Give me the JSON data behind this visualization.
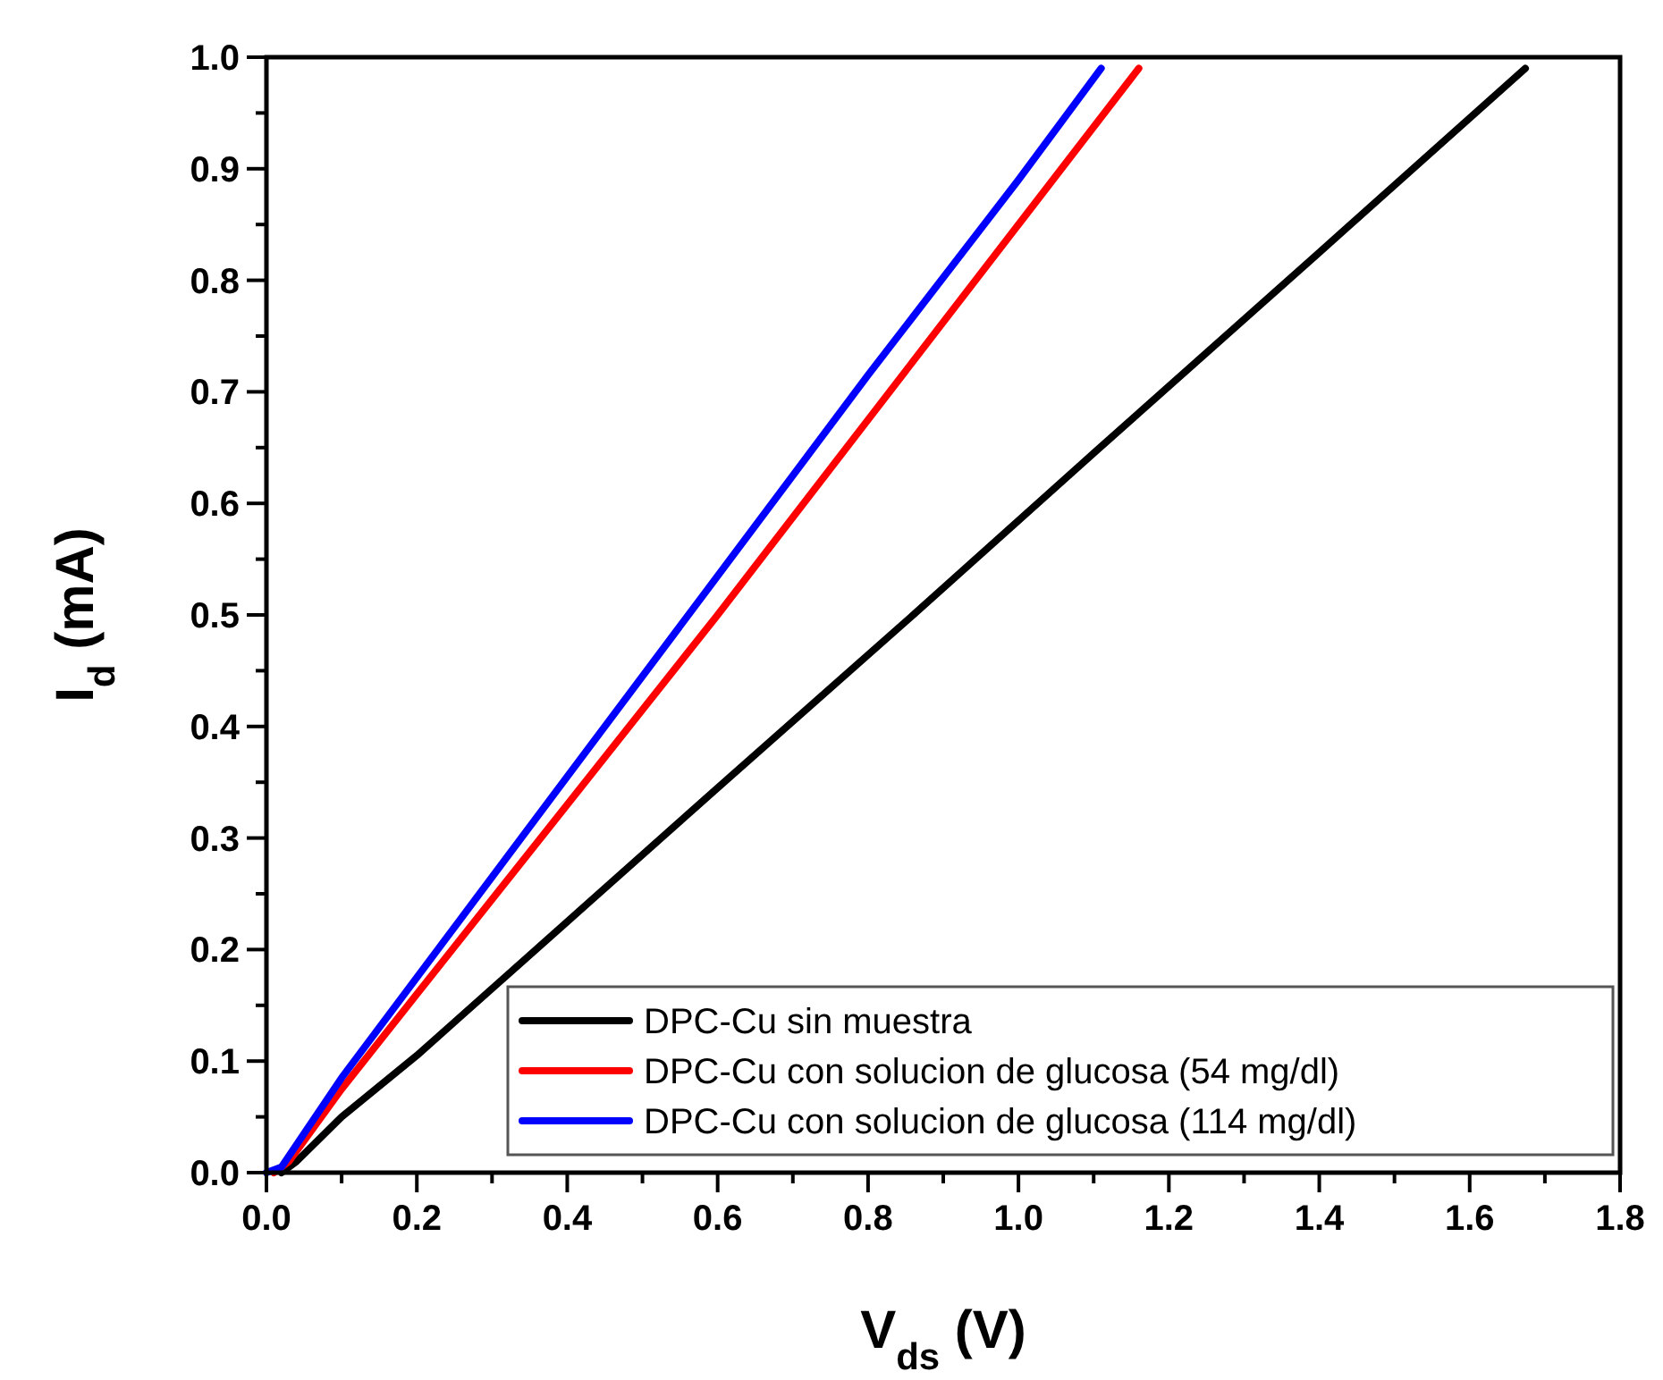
{
  "chart_data": {
    "type": "line",
    "xlabel": "V$_{ds}$ (V)",
    "ylabel": "I$_{d}$ (mA)",
    "xlim": [
      0,
      1.8
    ],
    "ylim": [
      0,
      1.0
    ],
    "xticks": [
      {
        "value": 0,
        "label": "0.0"
      },
      {
        "value": 0.1,
        "label": null
      },
      {
        "value": 0.2,
        "label": "0.2"
      },
      {
        "value": 0.3,
        "label": null
      },
      {
        "value": 0.4,
        "label": "0.4"
      },
      {
        "value": 0.5,
        "label": null
      },
      {
        "value": 0.6,
        "label": "0.6"
      },
      {
        "value": 0.7,
        "label": null
      },
      {
        "value": 0.8,
        "label": "0.8"
      },
      {
        "value": 0.9,
        "label": null
      },
      {
        "value": 1.0,
        "label": "1.0"
      },
      {
        "value": 1.1,
        "label": null
      },
      {
        "value": 1.2,
        "label": "1.2"
      },
      {
        "value": 1.3,
        "label": null
      },
      {
        "value": 1.4,
        "label": "1.4"
      },
      {
        "value": 1.5,
        "label": null
      },
      {
        "value": 1.6,
        "label": "1.6"
      },
      {
        "value": 1.7,
        "label": null
      },
      {
        "value": 1.8,
        "label": "1.8"
      }
    ],
    "yticks": [
      {
        "value": 0,
        "label": "0.0"
      },
      {
        "value": 0.05,
        "label": null
      },
      {
        "value": 0.1,
        "label": "0.1"
      },
      {
        "value": 0.15,
        "label": null
      },
      {
        "value": 0.2,
        "label": "0.2"
      },
      {
        "value": 0.25,
        "label": null
      },
      {
        "value": 0.3,
        "label": "0.3"
      },
      {
        "value": 0.35,
        "label": null
      },
      {
        "value": 0.4,
        "label": "0.4"
      },
      {
        "value": 0.45,
        "label": null
      },
      {
        "value": 0.5,
        "label": "0.5"
      },
      {
        "value": 0.55,
        "label": null
      },
      {
        "value": 0.6,
        "label": "0.6"
      },
      {
        "value": 0.65,
        "label": null
      },
      {
        "value": 0.7,
        "label": "0.7"
      },
      {
        "value": 0.75,
        "label": null
      },
      {
        "value": 0.8,
        "label": "0.8"
      },
      {
        "value": 0.85,
        "label": null
      },
      {
        "value": 0.9,
        "label": "0.9"
      },
      {
        "value": 0.95,
        "label": null
      },
      {
        "value": 1.0,
        "label": "1.0"
      }
    ],
    "legend": "bottom right",
    "grid": false,
    "marker": "none",
    "line_style": "solid",
    "series": [
      {
        "name": "DPC-Cu sin muestra",
        "color": "#000000",
        "x": [
          0.02,
          0.04,
          0.1,
          0.2,
          0.4,
          0.6,
          0.86,
          1.1,
          1.4,
          1.674
        ],
        "values": [
          0,
          0.01,
          0.05,
          0.105,
          0.225,
          0.345,
          0.5,
          0.645,
          0.825,
          0.99
        ]
      },
      {
        "name": "DPC-Cu con solucion de glucosa (54 mg/dl)",
        "color": "#ff0000",
        "x": [
          0.01,
          0.03,
          0.1,
          0.2,
          0.4,
          0.6,
          0.8,
          1.0,
          1.16
        ],
        "values": [
          0,
          0.01,
          0.075,
          0.16,
          0.33,
          0.5,
          0.675,
          0.85,
          0.99
        ]
      },
      {
        "name": "DPC-Cu con solucion de glucosa (114 mg/dl)",
        "color": "#0000ff",
        "x": [
          0.0,
          0.02,
          0.1,
          0.2,
          0.4,
          0.6,
          0.8,
          1.0,
          1.11
        ],
        "values": [
          0,
          0.005,
          0.085,
          0.175,
          0.355,
          0.535,
          0.715,
          0.89,
          0.99
        ]
      }
    ]
  }
}
